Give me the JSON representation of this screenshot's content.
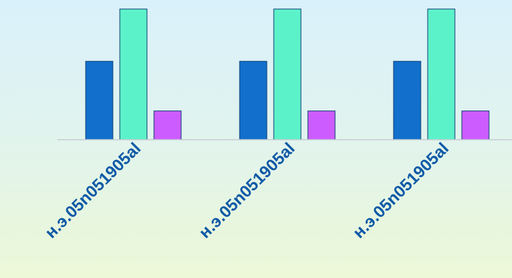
{
  "chart_data": {
    "type": "bar",
    "title": "",
    "xlabel": "",
    "ylabel": "",
    "categories": [
      "н.э.05n051905al",
      "н.э.05n051905al",
      "н.э.05n051905al"
    ],
    "series": [
      {
        "values": [
          3,
          3,
          3
        ],
        "color": "#1270cc"
      },
      {
        "values": [
          5,
          5,
          5
        ],
        "color": "#5cf2c9"
      },
      {
        "values": [
          1.1,
          1.1,
          1.1
        ],
        "color": "#cc5cff"
      }
    ],
    "ylim": [
      0,
      5
    ],
    "grid": false,
    "legend": "none",
    "colors": {
      "tick_label": "#0f5aa6",
      "axis_line": "#c5ccd2",
      "bar_stroke": "#0b3d73"
    }
  }
}
